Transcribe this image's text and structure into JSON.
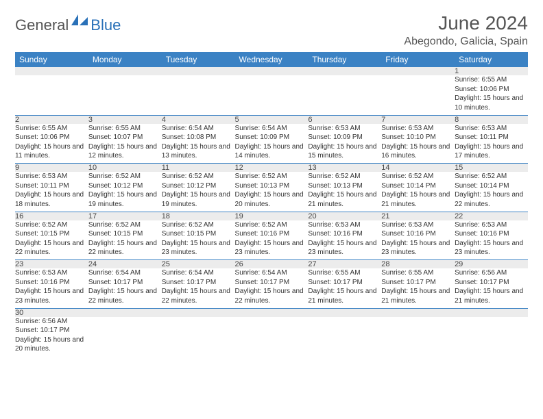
{
  "logo": {
    "text1": "General",
    "text2": "Blue"
  },
  "title": "June 2024",
  "location": "Abegondo, Galicia, Spain",
  "colors": {
    "header_bg": "#3b82c4",
    "header_text": "#ffffff",
    "daynum_bg": "#ececec",
    "rule": "#3b82c4",
    "logo_gray": "#555555",
    "logo_blue": "#2a71b8",
    "text": "#333333"
  },
  "day_headers": [
    "Sunday",
    "Monday",
    "Tuesday",
    "Wednesday",
    "Thursday",
    "Friday",
    "Saturday"
  ],
  "weeks": [
    [
      null,
      null,
      null,
      null,
      null,
      null,
      {
        "n": "1",
        "sunrise": "6:55 AM",
        "sunset": "10:06 PM",
        "daylight": "15 hours and 10 minutes."
      }
    ],
    [
      {
        "n": "2",
        "sunrise": "6:55 AM",
        "sunset": "10:06 PM",
        "daylight": "15 hours and 11 minutes."
      },
      {
        "n": "3",
        "sunrise": "6:55 AM",
        "sunset": "10:07 PM",
        "daylight": "15 hours and 12 minutes."
      },
      {
        "n": "4",
        "sunrise": "6:54 AM",
        "sunset": "10:08 PM",
        "daylight": "15 hours and 13 minutes."
      },
      {
        "n": "5",
        "sunrise": "6:54 AM",
        "sunset": "10:09 PM",
        "daylight": "15 hours and 14 minutes."
      },
      {
        "n": "6",
        "sunrise": "6:53 AM",
        "sunset": "10:09 PM",
        "daylight": "15 hours and 15 minutes."
      },
      {
        "n": "7",
        "sunrise": "6:53 AM",
        "sunset": "10:10 PM",
        "daylight": "15 hours and 16 minutes."
      },
      {
        "n": "8",
        "sunrise": "6:53 AM",
        "sunset": "10:11 PM",
        "daylight": "15 hours and 17 minutes."
      }
    ],
    [
      {
        "n": "9",
        "sunrise": "6:53 AM",
        "sunset": "10:11 PM",
        "daylight": "15 hours and 18 minutes."
      },
      {
        "n": "10",
        "sunrise": "6:52 AM",
        "sunset": "10:12 PM",
        "daylight": "15 hours and 19 minutes."
      },
      {
        "n": "11",
        "sunrise": "6:52 AM",
        "sunset": "10:12 PM",
        "daylight": "15 hours and 19 minutes."
      },
      {
        "n": "12",
        "sunrise": "6:52 AM",
        "sunset": "10:13 PM",
        "daylight": "15 hours and 20 minutes."
      },
      {
        "n": "13",
        "sunrise": "6:52 AM",
        "sunset": "10:13 PM",
        "daylight": "15 hours and 21 minutes."
      },
      {
        "n": "14",
        "sunrise": "6:52 AM",
        "sunset": "10:14 PM",
        "daylight": "15 hours and 21 minutes."
      },
      {
        "n": "15",
        "sunrise": "6:52 AM",
        "sunset": "10:14 PM",
        "daylight": "15 hours and 22 minutes."
      }
    ],
    [
      {
        "n": "16",
        "sunrise": "6:52 AM",
        "sunset": "10:15 PM",
        "daylight": "15 hours and 22 minutes."
      },
      {
        "n": "17",
        "sunrise": "6:52 AM",
        "sunset": "10:15 PM",
        "daylight": "15 hours and 22 minutes."
      },
      {
        "n": "18",
        "sunrise": "6:52 AM",
        "sunset": "10:15 PM",
        "daylight": "15 hours and 23 minutes."
      },
      {
        "n": "19",
        "sunrise": "6:52 AM",
        "sunset": "10:16 PM",
        "daylight": "15 hours and 23 minutes."
      },
      {
        "n": "20",
        "sunrise": "6:53 AM",
        "sunset": "10:16 PM",
        "daylight": "15 hours and 23 minutes."
      },
      {
        "n": "21",
        "sunrise": "6:53 AM",
        "sunset": "10:16 PM",
        "daylight": "15 hours and 23 minutes."
      },
      {
        "n": "22",
        "sunrise": "6:53 AM",
        "sunset": "10:16 PM",
        "daylight": "15 hours and 23 minutes."
      }
    ],
    [
      {
        "n": "23",
        "sunrise": "6:53 AM",
        "sunset": "10:16 PM",
        "daylight": "15 hours and 23 minutes."
      },
      {
        "n": "24",
        "sunrise": "6:54 AM",
        "sunset": "10:17 PM",
        "daylight": "15 hours and 22 minutes."
      },
      {
        "n": "25",
        "sunrise": "6:54 AM",
        "sunset": "10:17 PM",
        "daylight": "15 hours and 22 minutes."
      },
      {
        "n": "26",
        "sunrise": "6:54 AM",
        "sunset": "10:17 PM",
        "daylight": "15 hours and 22 minutes."
      },
      {
        "n": "27",
        "sunrise": "6:55 AM",
        "sunset": "10:17 PM",
        "daylight": "15 hours and 21 minutes."
      },
      {
        "n": "28",
        "sunrise": "6:55 AM",
        "sunset": "10:17 PM",
        "daylight": "15 hours and 21 minutes."
      },
      {
        "n": "29",
        "sunrise": "6:56 AM",
        "sunset": "10:17 PM",
        "daylight": "15 hours and 21 minutes."
      }
    ],
    [
      {
        "n": "30",
        "sunrise": "6:56 AM",
        "sunset": "10:17 PM",
        "daylight": "15 hours and 20 minutes."
      },
      null,
      null,
      null,
      null,
      null,
      null
    ]
  ],
  "labels": {
    "sunrise": "Sunrise:",
    "sunset": "Sunset:",
    "daylight": "Daylight:"
  }
}
